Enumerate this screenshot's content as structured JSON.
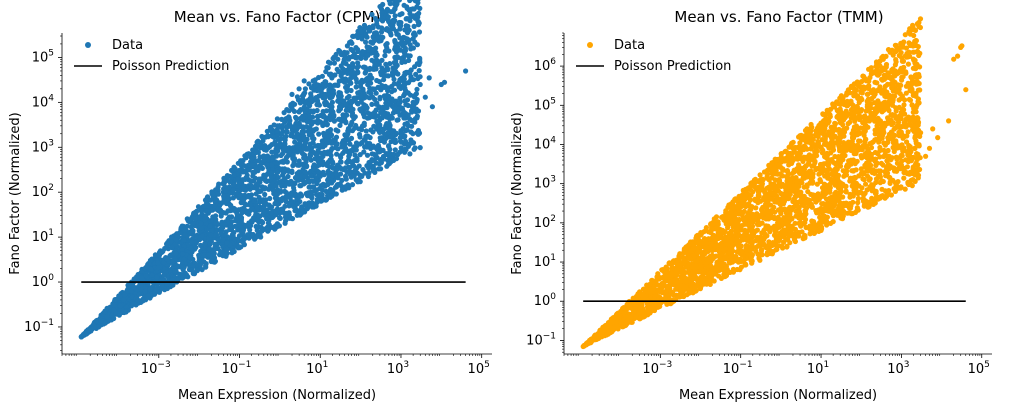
{
  "chart_data": [
    {
      "type": "scatter",
      "title": "Mean vs. Fano Factor (CPM)",
      "xlabel": "Mean Expression (Normalized)",
      "ylabel": "Fano Factor (Normalized)",
      "xscale": "log",
      "yscale": "log",
      "xlim": [
        4e-06,
        180000.0
      ],
      "ylim": [
        0.025,
        350000.0
      ],
      "xticks": [
        {
          "base": "10",
          "exp": "−3",
          "value": 0.001
        },
        {
          "base": "10",
          "exp": "−1",
          "value": 0.1
        },
        {
          "base": "10",
          "exp": "1",
          "value": 10
        },
        {
          "base": "10",
          "exp": "3",
          "value": 1000
        },
        {
          "base": "10",
          "exp": "5",
          "value": 100000
        }
      ],
      "yticks": [
        {
          "base": "10",
          "exp": "−1",
          "value": 0.1
        },
        {
          "base": "10",
          "exp": "0",
          "value": 1
        },
        {
          "base": "10",
          "exp": "1",
          "value": 10
        },
        {
          "base": "10",
          "exp": "2",
          "value": 100
        },
        {
          "base": "10",
          "exp": "3",
          "value": 1000
        },
        {
          "base": "10",
          "exp": "4",
          "value": 10000
        },
        {
          "base": "10",
          "exp": "5",
          "value": 100000
        }
      ],
      "grid": false,
      "legend_position": "top-left",
      "series": [
        {
          "name": "Data",
          "color": "#1f77b4",
          "marker": "circle",
          "density_band": {
            "x_range": [
              1.2e-05,
              3000.0
            ],
            "lower_slope": 0.5,
            "upper_slope": 1.0,
            "y_at_min_x": 0.06
          },
          "points": [
            [
              1.2e-05,
              0.06
            ],
            [
              0.0003,
              0.4
            ],
            [
              0.01,
              3
            ],
            [
              0.3,
              30
            ],
            [
              2,
              150
            ],
            [
              300,
              800
            ],
            [
              1000,
              2000
            ],
            [
              4,
              30000
            ],
            [
              8,
              25000
            ],
            [
              10,
              20000
            ],
            [
              20,
              10000
            ],
            [
              12,
              15000
            ],
            [
              30,
              8000
            ],
            [
              150,
              25000
            ],
            [
              200,
              20000
            ],
            [
              100,
              14000
            ],
            [
              300,
              12000
            ],
            [
              500,
              9000
            ],
            [
              700,
              7000
            ],
            [
              1200,
              6000
            ],
            [
              2000,
              10000
            ],
            [
              1500,
              8500
            ],
            [
              3000,
              25000
            ],
            [
              5000,
              35000
            ],
            [
              10000,
              25000
            ],
            [
              12000,
              28000
            ],
            [
              40000,
              50000
            ],
            [
              200,
              150000
            ],
            [
              400,
              110000
            ],
            [
              900,
              22000
            ],
            [
              3,
              20000
            ],
            [
              2,
              15000
            ],
            [
              6,
              12000
            ],
            [
              15,
              9000
            ],
            [
              60,
              7000
            ],
            [
              250,
              5000
            ],
            [
              800,
              4000
            ],
            [
              2500,
              4500
            ],
            [
              4000,
              13000
            ],
            [
              6000,
              8000
            ]
          ]
        },
        {
          "name": "Poisson Prediction",
          "color": "#000000",
          "type": "line",
          "x": [
            1.2e-05,
            40000.0
          ],
          "y": [
            1,
            1
          ]
        }
      ]
    },
    {
      "type": "scatter",
      "title": "Mean vs. Fano Factor (TMM)",
      "xlabel": "Mean Expression (Normalized)",
      "ylabel": "Fano Factor (Normalized)",
      "xscale": "log",
      "yscale": "log",
      "xlim": [
        4e-06,
        180000.0
      ],
      "ylim": [
        0.045,
        7000000.0
      ],
      "xticks": [
        {
          "base": "10",
          "exp": "−3",
          "value": 0.001
        },
        {
          "base": "10",
          "exp": "−1",
          "value": 0.1
        },
        {
          "base": "10",
          "exp": "1",
          "value": 10
        },
        {
          "base": "10",
          "exp": "3",
          "value": 1000
        },
        {
          "base": "10",
          "exp": "5",
          "value": 100000
        }
      ],
      "yticks": [
        {
          "base": "10",
          "exp": "−1",
          "value": 0.1
        },
        {
          "base": "10",
          "exp": "0",
          "value": 1
        },
        {
          "base": "10",
          "exp": "1",
          "value": 10
        },
        {
          "base": "10",
          "exp": "2",
          "value": 100
        },
        {
          "base": "10",
          "exp": "3",
          "value": 1000
        },
        {
          "base": "10",
          "exp": "4",
          "value": 10000
        },
        {
          "base": "10",
          "exp": "5",
          "value": 100000
        },
        {
          "base": "10",
          "exp": "6",
          "value": 1000000
        }
      ],
      "grid": false,
      "legend_position": "top-left",
      "series": [
        {
          "name": "Data",
          "color": "#ffa500",
          "marker": "circle",
          "density_band": {
            "x_range": [
              1.2e-05,
              3000.0
            ],
            "lower_slope": 0.5,
            "upper_slope": 1.0,
            "y_at_min_x": 0.07
          },
          "points": [
            [
              1.2e-05,
              0.07
            ],
            [
              0.0003,
              0.5
            ],
            [
              0.01,
              4
            ],
            [
              0.3,
              40
            ],
            [
              2,
              250
            ],
            [
              300,
              1500
            ],
            [
              1000,
              3000
            ],
            [
              20,
              100000
            ],
            [
              30,
              80000
            ],
            [
              50,
              60000
            ],
            [
              80,
              90000
            ],
            [
              100,
              150000
            ],
            [
              150,
              120000
            ],
            [
              250,
              70000
            ],
            [
              300,
              40000
            ],
            [
              400,
              200000
            ],
            [
              600,
              100000
            ],
            [
              800,
              30000
            ],
            [
              1000,
              150000
            ],
            [
              1500,
              50000
            ],
            [
              2000,
              40000
            ],
            [
              3000,
              20000
            ],
            [
              5000,
              8000
            ],
            [
              8000,
              15000
            ],
            [
              1200,
              60000
            ],
            [
              200,
              45000
            ],
            [
              20000,
              1500000
            ],
            [
              25000,
              1800000
            ],
            [
              30000,
              3000000
            ],
            [
              32000,
              3300000
            ],
            [
              15000,
              40000
            ],
            [
              40000,
              250000
            ],
            [
              6000,
              25000
            ],
            [
              10,
              20000
            ],
            [
              5,
              15000
            ],
            [
              2,
              8000
            ],
            [
              60,
              12000
            ],
            [
              4000,
              5000
            ]
          ]
        },
        {
          "name": "Poisson Prediction",
          "color": "#000000",
          "type": "line",
          "x": [
            1.2e-05,
            40000.0
          ],
          "y": [
            1,
            1
          ]
        }
      ]
    }
  ]
}
